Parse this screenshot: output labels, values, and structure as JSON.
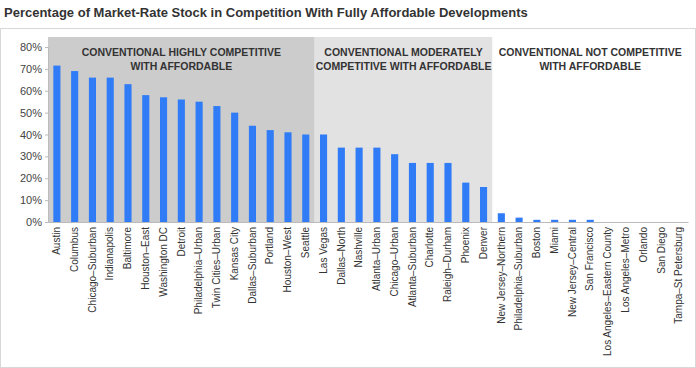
{
  "chart_data": {
    "type": "bar",
    "title": "Percentage of Market-Rate Stock in Competition With Fully Affordable Developments",
    "categories": [
      "Austin",
      "Columbus",
      "Chicago–Suburban",
      "Indianapolis",
      "Baltimore",
      "Houston–East",
      "Washington DC",
      "Detroit",
      "Philadelphia–Urban",
      "Twin Cities–Urban",
      "Kansas City",
      "Dallas–Suburban",
      "Portland",
      "Houston–West",
      "Seattle",
      "Las Vegas",
      "Dallas–North",
      "Nashville",
      "Atlanta–Urban",
      "Chicago–Urban",
      "Atlanta–Suburban",
      "Charlotte",
      "Raleigh–Durham",
      "Phoenix",
      "Denver",
      "New Jersey–Northern",
      "Philadelphia–Suburban",
      "Boston",
      "Miami",
      "New Jersey–Central",
      "San Francisco",
      "Los Angeles–Eastern County",
      "Los Angeles–Metro",
      "Orlando",
      "San Diego",
      "Tampa–St Petersburg"
    ],
    "values": [
      71.5,
      69,
      66,
      66,
      63,
      58,
      57,
      56,
      55,
      53,
      50,
      44,
      42,
      41,
      40,
      40,
      34,
      34,
      34,
      31,
      27,
      27,
      27,
      18,
      16,
      4,
      2,
      1,
      1,
      1,
      1,
      0,
      0,
      0,
      0,
      0
    ],
    "color": "#2f7cf6",
    "ylim": [
      0,
      80
    ],
    "yticks": [
      {
        "value": 0,
        "label": "0%"
      },
      {
        "value": 10,
        "label": "10%"
      },
      {
        "value": 20,
        "label": "20%"
      },
      {
        "value": 30,
        "label": "30%"
      },
      {
        "value": 40,
        "label": "40%"
      },
      {
        "value": 50,
        "label": "50%"
      },
      {
        "value": 60,
        "label": "60%"
      },
      {
        "value": 70,
        "label": "70%"
      },
      {
        "value": 80,
        "label": "80%"
      }
    ],
    "grid": false,
    "regions": [
      {
        "label": [
          "CONVENTIONAL HIGHLY COMPETITIVE",
          "WITH AFFORDABLE"
        ],
        "from": "Austin",
        "to": "Seattle",
        "color": "#cccccc"
      },
      {
        "label": [
          "CONVENTIONAL MODERATELY",
          "COMPETITIVE WITH AFFORDABLE"
        ],
        "from": "Las Vegas",
        "to": "Denver",
        "color": "#e2e2e2"
      },
      {
        "label": [
          "CONVENTIONAL NOT COMPETITIVE",
          "WITH AFFORDABLE"
        ],
        "from": "New Jersey–Northern",
        "to": "Tampa–St Petersburg",
        "color": "#ffffff"
      }
    ]
  }
}
